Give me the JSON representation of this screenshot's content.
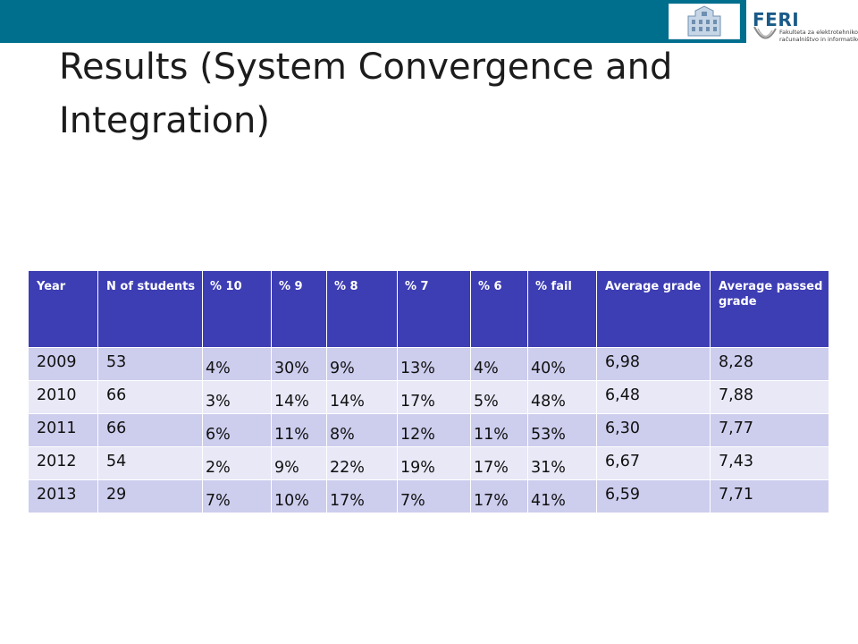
{
  "slide": {
    "title": "Results (System Convergence and Integration)"
  },
  "logo": {
    "brand": "FERI",
    "subtitle_line1": "Fakulteta za elektrotehniko,",
    "subtitle_line2": "računalništvo in informatiko"
  },
  "table": {
    "headers": [
      "Year",
      "N of students",
      "% 10",
      "% 9",
      "% 8",
      "% 7",
      "% 6",
      "% fail",
      "Average grade",
      "Average passed grade"
    ],
    "rows": [
      [
        "2009",
        "53",
        "4%",
        "30%",
        "9%",
        "13%",
        "4%",
        "40%",
        "6,98",
        "8,28"
      ],
      [
        "2010",
        "66",
        "3%",
        "14%",
        "14%",
        "17%",
        "5%",
        "48%",
        "6,48",
        "7,88"
      ],
      [
        "2011",
        "66",
        "6%",
        "11%",
        "8%",
        "12%",
        "11%",
        "53%",
        "6,30",
        "7,77"
      ],
      [
        "2012",
        "54",
        "2%",
        "9%",
        "22%",
        "19%",
        "17%",
        "31%",
        "6,67",
        "7,43"
      ],
      [
        "2013",
        "29",
        "7%",
        "10%",
        "17%",
        "7%",
        "17%",
        "41%",
        "6,59",
        "7,71"
      ]
    ]
  },
  "colors": {
    "top_bar": "#006f8d",
    "header_fill": "#3d3db4",
    "row_dark": "#cdcdee",
    "row_light": "#e8e8f7"
  }
}
